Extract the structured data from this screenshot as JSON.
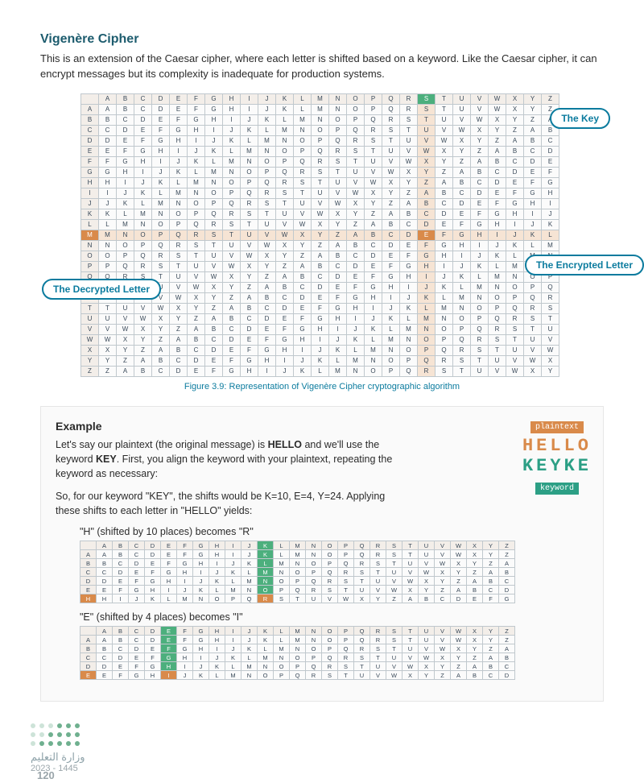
{
  "title": "Vigenère Cipher",
  "intro": "This is an extension of the Caesar cipher, where each letter is shifted based on a keyword. Like the Caesar cipher, it can encrypt messages but its complexity is inadequate for production systems.",
  "alphabet": [
    "A",
    "B",
    "C",
    "D",
    "E",
    "F",
    "G",
    "H",
    "I",
    "J",
    "K",
    "L",
    "M",
    "N",
    "O",
    "P",
    "Q",
    "R",
    "S",
    "T",
    "U",
    "V",
    "W",
    "X",
    "Y",
    "Z"
  ],
  "tabula": {
    "rows": 26,
    "highlight_col_letter": "S",
    "highlight_row_letter": "M",
    "intersection_letter": "E",
    "header_bg": "#f3eee9",
    "cell_border": "#c0c8cd",
    "green": "#4caf7d",
    "orange": "#d98a4a",
    "tint": "#f6e4d4"
  },
  "callouts": {
    "key": "The Key",
    "encrypted": "The Encrypted Letter",
    "decrypted": "The Decrypted Letter"
  },
  "caption": "Figure 3.9: Representation of Vigenère Cipher cryptographic algorithm",
  "example": {
    "heading": "Example",
    "p1a": "Let's say our plaintext (the original message) is ",
    "p1b": "HELLO",
    "p1c": " and we'll use the keyword ",
    "p1d": "KEY",
    "p1e": ". First, you align the keyword with your plaintext, repeating the keyword as necessary:",
    "p2": "So, for our keyword \"KEY\", the shifts would be K=10, E=4, Y=24. Applying these shifts to each letter in \"HELLO\" yields:",
    "shiftH": "\"H\" (shifted by 10 places) becomes \"R\"",
    "shiftE": "\"E\" (shifted by 4 places) becomes \"I\"",
    "sideIllus": {
      "plaintext_badge": "plaintext",
      "hello": "HELLO",
      "keyke": "KEYKE",
      "keyword_badge": "keyword"
    },
    "smallH": {
      "rows": 6,
      "col_letter": "K",
      "row_letter": "H",
      "result": "R"
    },
    "smallE": {
      "rows": 5,
      "col_letter": "E",
      "row_letter": "E",
      "result": "I"
    }
  },
  "footer": {
    "arabic": "وزارة التعليم",
    "years": "2023 - 1445",
    "page": "120"
  }
}
